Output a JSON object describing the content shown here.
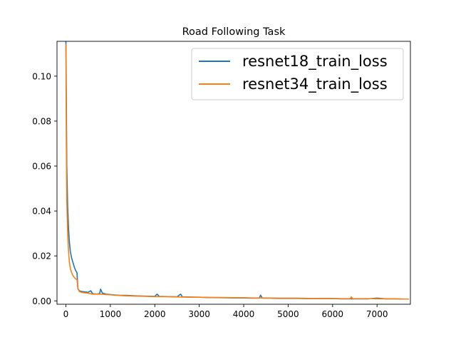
{
  "chart_data": {
    "type": "line",
    "title": "Road Following Task",
    "xlabel": "",
    "ylabel": "",
    "xlim": [
      -200,
      7750
    ],
    "ylim": [
      -0.0015,
      0.1155
    ],
    "xticks": [
      0,
      1000,
      2000,
      3000,
      4000,
      5000,
      6000,
      7000
    ],
    "yticks": [
      0.0,
      0.02,
      0.04,
      0.06,
      0.08,
      0.1
    ],
    "xtick_labels": [
      "0",
      "1000",
      "2000",
      "3000",
      "4000",
      "5000",
      "6000",
      "7000"
    ],
    "ytick_labels": [
      "0.00",
      "0.02",
      "0.04",
      "0.06",
      "0.08",
      "0.10"
    ],
    "grid": false,
    "legend_position": "top-right",
    "series": [
      {
        "name": "resnet18_train_loss",
        "color": "#1f77b4",
        "x": [
          0,
          10,
          20,
          40,
          60,
          80,
          100,
          130,
          160,
          190,
          220,
          250,
          270,
          300,
          350,
          420,
          500,
          560,
          600,
          700,
          760,
          780,
          820,
          900,
          1000,
          1100,
          1200,
          1400,
          1600,
          1800,
          2000,
          2050,
          2100,
          2300,
          2500,
          2580,
          2620,
          2800,
          3000,
          3200,
          3500,
          3800,
          4000,
          4200,
          4350,
          4380,
          4420,
          4600,
          4800,
          5000,
          5200,
          5400,
          5600,
          5800,
          6000,
          6200,
          6400,
          6600,
          6800,
          7000,
          7200,
          7400,
          7600,
          7700
        ],
        "y": [
          0.118,
          0.09,
          0.06,
          0.042,
          0.032,
          0.026,
          0.022,
          0.019,
          0.017,
          0.015,
          0.0135,
          0.0125,
          0.0055,
          0.0045,
          0.0042,
          0.004,
          0.0038,
          0.0045,
          0.0032,
          0.003,
          0.0033,
          0.0052,
          0.0035,
          0.003,
          0.0028,
          0.0026,
          0.0025,
          0.0024,
          0.0022,
          0.0021,
          0.002,
          0.003,
          0.002,
          0.0019,
          0.0018,
          0.003,
          0.0018,
          0.0017,
          0.0016,
          0.0015,
          0.0014,
          0.0013,
          0.0013,
          0.0012,
          0.0012,
          0.0025,
          0.0012,
          0.0012,
          0.0011,
          0.0011,
          0.0011,
          0.001,
          0.001,
          0.001,
          0.001,
          0.0009,
          0.0009,
          0.0009,
          0.0009,
          0.0012,
          0.0009,
          0.0009,
          0.0008,
          0.0008
        ]
      },
      {
        "name": "resnet34_train_loss",
        "color": "#ff7f0e",
        "x": [
          0,
          10,
          20,
          40,
          60,
          80,
          100,
          130,
          160,
          190,
          220,
          250,
          270,
          300,
          350,
          420,
          500,
          560,
          600,
          700,
          800,
          900,
          1000,
          1100,
          1200,
          1300,
          1400,
          1600,
          1800,
          2000,
          2200,
          2400,
          2600,
          2800,
          3000,
          3200,
          3500,
          3800,
          4000,
          4200,
          4500,
          4800,
          5000,
          5200,
          5500,
          5800,
          6000,
          6200,
          6400,
          6420,
          6450,
          6600,
          6800,
          7000,
          7200,
          7400,
          7600,
          7700
        ],
        "y": [
          0.114,
          0.07,
          0.045,
          0.03,
          0.022,
          0.017,
          0.0145,
          0.0125,
          0.0112,
          0.0104,
          0.0098,
          0.0094,
          0.0055,
          0.0042,
          0.0038,
          0.0036,
          0.0034,
          0.0032,
          0.003,
          0.003,
          0.003,
          0.0028,
          0.0027,
          0.0025,
          0.0024,
          0.0023,
          0.0022,
          0.0021,
          0.002,
          0.0019,
          0.0019,
          0.0018,
          0.0017,
          0.0016,
          0.0016,
          0.0015,
          0.0015,
          0.0014,
          0.0014,
          0.0013,
          0.0013,
          0.0012,
          0.0012,
          0.0012,
          0.0011,
          0.0011,
          0.0011,
          0.001,
          0.001,
          0.0018,
          0.001,
          0.001,
          0.001,
          0.0009,
          0.0009,
          0.0009,
          0.0008,
          0.0008
        ]
      }
    ]
  }
}
